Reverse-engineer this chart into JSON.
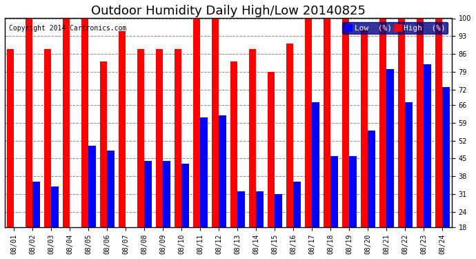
{
  "title": "Outdoor Humidity Daily High/Low 20140825",
  "copyright": "Copyright 2014 Cartronics.com",
  "dates": [
    "08/01",
    "08/02",
    "08/03",
    "08/04",
    "08/05",
    "08/06",
    "08/07",
    "08/08",
    "08/09",
    "08/10",
    "08/11",
    "08/12",
    "08/13",
    "08/14",
    "08/15",
    "08/16",
    "08/17",
    "08/18",
    "08/19",
    "08/20",
    "08/21",
    "08/22",
    "08/23",
    "08/24"
  ],
  "high_values": [
    88,
    100,
    88,
    100,
    100,
    83,
    95,
    88,
    88,
    88,
    100,
    100,
    83,
    88,
    79,
    90,
    100,
    100,
    100,
    96,
    100,
    100,
    100,
    100
  ],
  "low_values": [
    18,
    36,
    34,
    18,
    50,
    48,
    18,
    44,
    44,
    43,
    61,
    62,
    32,
    32,
    31,
    36,
    67,
    46,
    46,
    56,
    80,
    67,
    82,
    73
  ],
  "high_color": "#ff0000",
  "low_color": "#0000ff",
  "bg_color": "#ffffff",
  "plot_bg_color": "#ffffff",
  "grid_color": "#888888",
  "yticks": [
    18,
    24,
    31,
    38,
    45,
    52,
    59,
    66,
    72,
    79,
    86,
    93,
    100
  ],
  "ylim": [
    18,
    100
  ],
  "ymin": 18,
  "title_fontsize": 13,
  "legend_fontsize": 8,
  "tick_fontsize": 7,
  "copyright_fontsize": 7
}
